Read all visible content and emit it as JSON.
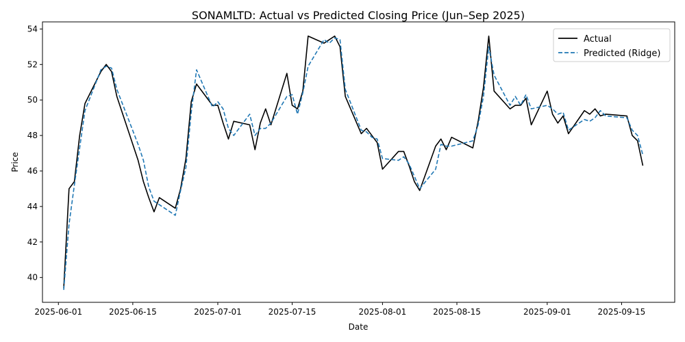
{
  "chart_data": {
    "type": "line",
    "title": "SONAMLTD: Actual vs Predicted Closing Price (Jun–Sep 2025)",
    "xlabel": "Date",
    "ylabel": "Price",
    "xlim": [
      "2025-05-29",
      "2025-09-25"
    ],
    "ylim": [
      38.6,
      54.4
    ],
    "x_ticks": [
      "2025-06-01",
      "2025-06-15",
      "2025-07-01",
      "2025-07-15",
      "2025-08-01",
      "2025-08-15",
      "2025-09-01",
      "2025-09-15"
    ],
    "y_ticks": [
      40,
      42,
      44,
      46,
      48,
      50,
      52,
      54
    ],
    "legend_position": "top-right",
    "grid": false,
    "series": [
      {
        "name": "Actual",
        "color": "#000000",
        "style": "solid",
        "points": [
          [
            "2025-06-02",
            39.4
          ],
          [
            "2025-06-03",
            45.0
          ],
          [
            "2025-06-04",
            45.4
          ],
          [
            "2025-06-05",
            48.0
          ],
          [
            "2025-06-06",
            49.8
          ],
          [
            "2025-06-09",
            51.6
          ],
          [
            "2025-06-10",
            52.0
          ],
          [
            "2025-06-11",
            51.6
          ],
          [
            "2025-06-12",
            50.2
          ],
          [
            "2025-06-16",
            46.6
          ],
          [
            "2025-06-17",
            45.4
          ],
          [
            "2025-06-18",
            44.5
          ],
          [
            "2025-06-19",
            43.7
          ],
          [
            "2025-06-20",
            44.5
          ],
          [
            "2025-06-23",
            43.9
          ],
          [
            "2025-06-24",
            45.0
          ],
          [
            "2025-06-25",
            46.7
          ],
          [
            "2025-06-26",
            49.9
          ],
          [
            "2025-06-27",
            50.9
          ],
          [
            "2025-06-30",
            49.7
          ],
          [
            "2025-07-01",
            49.7
          ],
          [
            "2025-07-02",
            48.7
          ],
          [
            "2025-07-03",
            47.8
          ],
          [
            "2025-07-04",
            48.8
          ],
          [
            "2025-07-07",
            48.6
          ],
          [
            "2025-07-08",
            47.2
          ],
          [
            "2025-07-09",
            48.7
          ],
          [
            "2025-07-10",
            49.5
          ],
          [
            "2025-07-11",
            48.6
          ],
          [
            "2025-07-14",
            51.5
          ],
          [
            "2025-07-15",
            49.7
          ],
          [
            "2025-07-16",
            49.5
          ],
          [
            "2025-07-17",
            50.5
          ],
          [
            "2025-07-18",
            53.6
          ],
          [
            "2025-07-21",
            53.2
          ],
          [
            "2025-07-22",
            53.4
          ],
          [
            "2025-07-23",
            53.6
          ],
          [
            "2025-07-24",
            53.0
          ],
          [
            "2025-07-25",
            50.2
          ],
          [
            "2025-07-28",
            48.1
          ],
          [
            "2025-07-29",
            48.4
          ],
          [
            "2025-07-30",
            48.0
          ],
          [
            "2025-07-31",
            47.6
          ],
          [
            "2025-08-01",
            46.1
          ],
          [
            "2025-08-04",
            47.1
          ],
          [
            "2025-08-05",
            47.1
          ],
          [
            "2025-08-06",
            46.3
          ],
          [
            "2025-08-07",
            45.4
          ],
          [
            "2025-08-08",
            44.9
          ],
          [
            "2025-08-11",
            47.4
          ],
          [
            "2025-08-12",
            47.8
          ],
          [
            "2025-08-13",
            47.2
          ],
          [
            "2025-08-14",
            47.9
          ],
          [
            "2025-08-18",
            47.3
          ],
          [
            "2025-08-19",
            48.8
          ],
          [
            "2025-08-20",
            50.7
          ],
          [
            "2025-08-21",
            53.6
          ],
          [
            "2025-08-22",
            50.5
          ],
          [
            "2025-08-25",
            49.5
          ],
          [
            "2025-08-26",
            49.7
          ],
          [
            "2025-08-27",
            49.7
          ],
          [
            "2025-08-28",
            50.1
          ],
          [
            "2025-08-29",
            48.6
          ],
          [
            "2025-09-01",
            50.5
          ],
          [
            "2025-09-02",
            49.2
          ],
          [
            "2025-09-03",
            48.7
          ],
          [
            "2025-09-04",
            49.1
          ],
          [
            "2025-09-05",
            48.1
          ],
          [
            "2025-09-08",
            49.4
          ],
          [
            "2025-09-09",
            49.2
          ],
          [
            "2025-09-10",
            49.5
          ],
          [
            "2025-09-11",
            49.1
          ],
          [
            "2025-09-12",
            49.2
          ],
          [
            "2025-09-16",
            49.1
          ],
          [
            "2025-09-17",
            48.0
          ],
          [
            "2025-09-18",
            47.7
          ],
          [
            "2025-09-19",
            46.3
          ]
        ]
      },
      {
        "name": "Predicted (Ridge)",
        "color": "#1f77b4",
        "style": "dashed",
        "points": [
          [
            "2025-06-02",
            39.3
          ],
          [
            "2025-06-03",
            43.0
          ],
          [
            "2025-06-04",
            45.2
          ],
          [
            "2025-06-05",
            47.3
          ],
          [
            "2025-06-06",
            49.4
          ],
          [
            "2025-06-09",
            51.7
          ],
          [
            "2025-06-10",
            51.9
          ],
          [
            "2025-06-11",
            51.8
          ],
          [
            "2025-06-12",
            50.6
          ],
          [
            "2025-06-16",
            47.5
          ],
          [
            "2025-06-17",
            46.6
          ],
          [
            "2025-06-18",
            45.1
          ],
          [
            "2025-06-19",
            44.3
          ],
          [
            "2025-06-20",
            44.1
          ],
          [
            "2025-06-23",
            43.5
          ],
          [
            "2025-06-24",
            44.9
          ],
          [
            "2025-06-25",
            46.2
          ],
          [
            "2025-06-26",
            49.3
          ],
          [
            "2025-06-27",
            51.7
          ],
          [
            "2025-06-30",
            49.6
          ],
          [
            "2025-07-01",
            49.9
          ],
          [
            "2025-07-02",
            49.5
          ],
          [
            "2025-07-03",
            48.4
          ],
          [
            "2025-07-04",
            48.0
          ],
          [
            "2025-07-07",
            49.2
          ],
          [
            "2025-07-08",
            48.0
          ],
          [
            "2025-07-09",
            48.4
          ],
          [
            "2025-07-10",
            48.4
          ],
          [
            "2025-07-11",
            48.7
          ],
          [
            "2025-07-14",
            50.2
          ],
          [
            "2025-07-15",
            50.3
          ],
          [
            "2025-07-16",
            49.2
          ],
          [
            "2025-07-17",
            50.4
          ],
          [
            "2025-07-18",
            51.9
          ],
          [
            "2025-07-21",
            53.4
          ],
          [
            "2025-07-22",
            53.2
          ],
          [
            "2025-07-23",
            53.5
          ],
          [
            "2025-07-24",
            53.4
          ],
          [
            "2025-07-25",
            50.6
          ],
          [
            "2025-07-28",
            48.3
          ],
          [
            "2025-07-29",
            48.2
          ],
          [
            "2025-07-30",
            47.9
          ],
          [
            "2025-07-31",
            47.8
          ],
          [
            "2025-08-01",
            46.7
          ],
          [
            "2025-08-04",
            46.6
          ],
          [
            "2025-08-05",
            46.8
          ],
          [
            "2025-08-06",
            46.4
          ],
          [
            "2025-08-07",
            45.7
          ],
          [
            "2025-08-08",
            45.0
          ],
          [
            "2025-08-11",
            46.1
          ],
          [
            "2025-08-12",
            47.5
          ],
          [
            "2025-08-13",
            47.4
          ],
          [
            "2025-08-14",
            47.4
          ],
          [
            "2025-08-18",
            47.7
          ],
          [
            "2025-08-19",
            48.6
          ],
          [
            "2025-08-20",
            50.2
          ],
          [
            "2025-08-21",
            53.0
          ],
          [
            "2025-08-22",
            51.4
          ],
          [
            "2025-08-25",
            49.7
          ],
          [
            "2025-08-26",
            50.2
          ],
          [
            "2025-08-27",
            49.7
          ],
          [
            "2025-08-28",
            50.3
          ],
          [
            "2025-08-29",
            49.5
          ],
          [
            "2025-09-01",
            49.7
          ],
          [
            "2025-09-02",
            49.5
          ],
          [
            "2025-09-03",
            49.2
          ],
          [
            "2025-09-04",
            49.3
          ],
          [
            "2025-09-05",
            48.3
          ],
          [
            "2025-09-08",
            48.9
          ],
          [
            "2025-09-09",
            48.8
          ],
          [
            "2025-09-10",
            49.0
          ],
          [
            "2025-09-11",
            49.4
          ],
          [
            "2025-09-12",
            49.1
          ],
          [
            "2025-09-16",
            49.0
          ],
          [
            "2025-09-17",
            48.3
          ],
          [
            "2025-09-18",
            48.0
          ],
          [
            "2025-09-19",
            46.9
          ]
        ]
      }
    ]
  }
}
